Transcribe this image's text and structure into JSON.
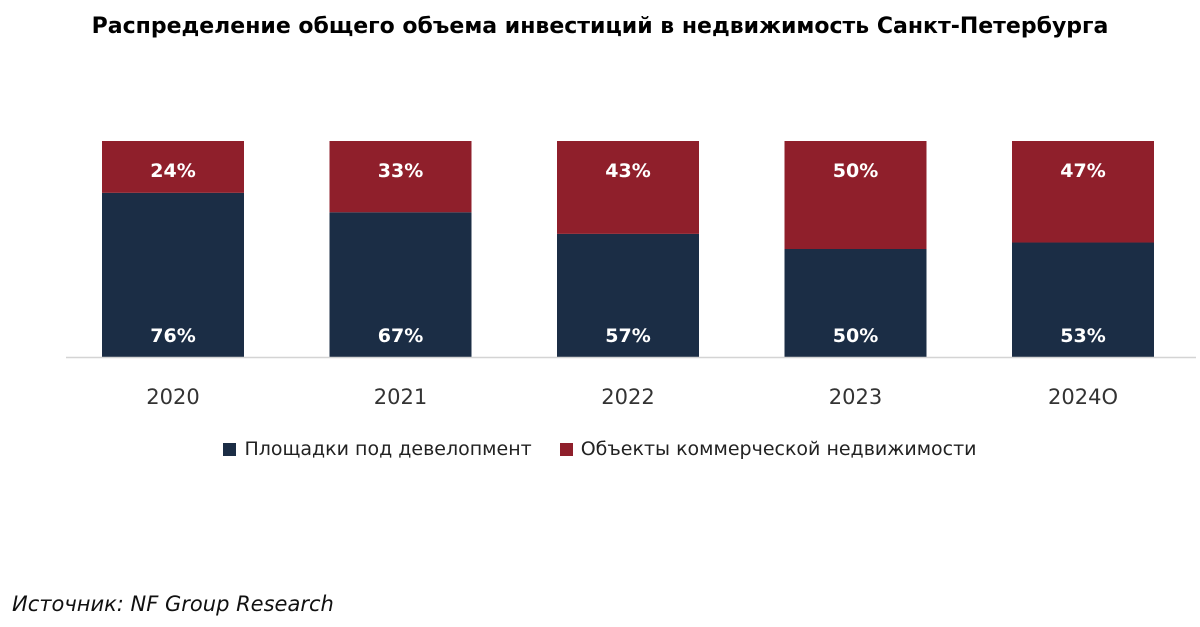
{
  "chart_data": {
    "type": "bar",
    "stacked": true,
    "title": "Распределение общего объема инвестиций в недвижимость Санкт-Петербурга",
    "categories": [
      "2020",
      "2021",
      "2022",
      "2023",
      "2024О"
    ],
    "series": [
      {
        "name": "Площадки под девелопмент",
        "color": "#1b2d45",
        "values": [
          76,
          67,
          57,
          50,
          53
        ],
        "labels": [
          "76%",
          "67%",
          "57%",
          "50%",
          "53%"
        ]
      },
      {
        "name": "Объекты коммерческой недвижимости",
        "color": "#8f1f2b",
        "values": [
          24,
          33,
          43,
          50,
          47
        ],
        "labels": [
          "24%",
          "33%",
          "43%",
          "50%",
          "47%"
        ]
      }
    ],
    "ylim": [
      0,
      100
    ],
    "grid": false,
    "legend": "bottom"
  },
  "source": "Источник: NF Group Research"
}
